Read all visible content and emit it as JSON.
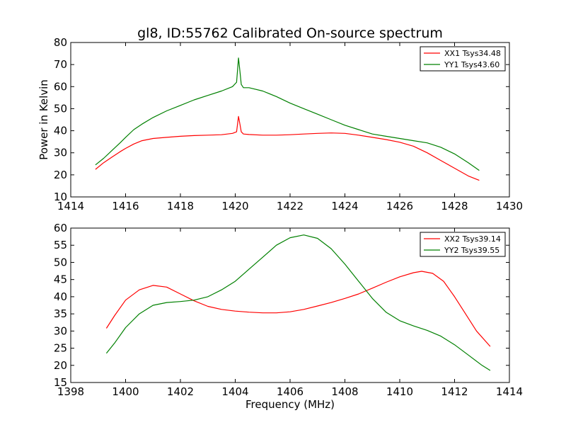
{
  "chart_data": [
    {
      "type": "line",
      "title": "gl8, ID:55762 Calibrated On-source spectrum",
      "xlabel": "",
      "ylabel": "Power in Kelvin",
      "xlim": [
        1414,
        1430
      ],
      "ylim": [
        10,
        80
      ],
      "xticks": [
        "1414",
        "1416",
        "1418",
        "1420",
        "1422",
        "1424",
        "1426",
        "1428",
        "1430"
      ],
      "yticks": [
        "10",
        "20",
        "30",
        "40",
        "50",
        "60",
        "70",
        "80"
      ],
      "legend_position": "top-right",
      "series": [
        {
          "name": "XX1 Tsys34.48",
          "color": "#ff0000",
          "x": [
            1414.9,
            1415.2,
            1415.5,
            1415.8,
            1416.0,
            1416.3,
            1416.6,
            1417.0,
            1417.5,
            1418.0,
            1418.5,
            1419.0,
            1419.5,
            1419.9,
            1420.05,
            1420.12,
            1420.17,
            1420.22,
            1420.3,
            1420.5,
            1421.0,
            1421.5,
            1422.0,
            1422.5,
            1423.0,
            1423.5,
            1424.0,
            1424.5,
            1425.0,
            1425.5,
            1426.0,
            1426.5,
            1427.0,
            1427.5,
            1428.0,
            1428.5,
            1428.9
          ],
          "y": [
            22.5,
            25.5,
            28.0,
            30.5,
            32.0,
            34.0,
            35.5,
            36.5,
            37.0,
            37.5,
            37.8,
            38.0,
            38.2,
            38.8,
            39.5,
            46.5,
            43.0,
            39.5,
            38.5,
            38.3,
            38.0,
            38.0,
            38.2,
            38.5,
            38.8,
            39.0,
            38.8,
            38.0,
            37.0,
            36.0,
            34.8,
            33.0,
            30.0,
            26.5,
            23.0,
            19.5,
            17.5
          ]
        },
        {
          "name": "YY1 Tsys43.60",
          "color": "#008000",
          "x": [
            1414.9,
            1415.2,
            1415.5,
            1415.8,
            1416.0,
            1416.3,
            1416.6,
            1417.0,
            1417.5,
            1418.0,
            1418.5,
            1419.0,
            1419.5,
            1419.9,
            1420.05,
            1420.12,
            1420.17,
            1420.22,
            1420.3,
            1420.5,
            1421.0,
            1421.5,
            1422.0,
            1422.5,
            1423.0,
            1423.5,
            1424.0,
            1424.5,
            1425.0,
            1425.5,
            1426.0,
            1426.5,
            1427.0,
            1427.5,
            1428.0,
            1428.5,
            1428.9
          ],
          "y": [
            24.5,
            27.5,
            31.0,
            34.5,
            37.0,
            40.5,
            43.0,
            46.0,
            49.0,
            51.5,
            54.0,
            56.0,
            58.0,
            60.0,
            62.0,
            73.0,
            67.0,
            61.0,
            59.5,
            59.5,
            58.0,
            55.5,
            52.5,
            50.0,
            47.5,
            45.0,
            42.5,
            40.5,
            38.5,
            37.5,
            36.5,
            35.5,
            34.5,
            32.5,
            29.5,
            25.5,
            22.0
          ]
        }
      ]
    },
    {
      "type": "line",
      "title": "",
      "xlabel": "Frequency (MHz)",
      "ylabel": "",
      "xlim": [
        1398,
        1414
      ],
      "ylim": [
        15,
        60
      ],
      "xticks": [
        "1398",
        "1400",
        "1402",
        "1404",
        "1406",
        "1408",
        "1410",
        "1412",
        "1414"
      ],
      "yticks": [
        "15",
        "20",
        "25",
        "30",
        "35",
        "40",
        "45",
        "50",
        "55",
        "60"
      ],
      "legend_position": "top-right",
      "series": [
        {
          "name": "XX2 Tsys39.14",
          "color": "#ff0000",
          "x": [
            1399.3,
            1399.6,
            1400.0,
            1400.5,
            1401.0,
            1401.5,
            1402.0,
            1402.5,
            1403.0,
            1403.5,
            1404.0,
            1404.5,
            1405.0,
            1405.5,
            1406.0,
            1406.5,
            1407.0,
            1407.5,
            1408.0,
            1408.5,
            1409.0,
            1409.5,
            1410.0,
            1410.5,
            1410.8,
            1411.2,
            1411.6,
            1412.0,
            1412.4,
            1412.8,
            1413.3
          ],
          "y": [
            30.8,
            34.5,
            39.0,
            42.0,
            43.3,
            42.8,
            40.8,
            38.8,
            37.2,
            36.3,
            35.8,
            35.5,
            35.3,
            35.3,
            35.6,
            36.3,
            37.3,
            38.3,
            39.5,
            40.8,
            42.5,
            44.2,
            45.8,
            47.0,
            47.4,
            46.8,
            44.5,
            40.0,
            35.0,
            30.0,
            25.5
          ]
        },
        {
          "name": "YY2 Tsys39.55",
          "color": "#008000",
          "x": [
            1399.3,
            1399.6,
            1400.0,
            1400.5,
            1401.0,
            1401.5,
            1402.0,
            1402.5,
            1403.0,
            1403.5,
            1404.0,
            1404.5,
            1405.0,
            1405.5,
            1406.0,
            1406.5,
            1407.0,
            1407.5,
            1408.0,
            1408.5,
            1409.0,
            1409.5,
            1410.0,
            1410.5,
            1411.0,
            1411.5,
            1412.0,
            1412.5,
            1413.0,
            1413.3
          ],
          "y": [
            23.5,
            26.5,
            31.0,
            35.0,
            37.5,
            38.3,
            38.6,
            39.0,
            40.0,
            42.0,
            44.5,
            48.0,
            51.5,
            55.0,
            57.2,
            58.0,
            57.0,
            54.0,
            49.5,
            44.5,
            39.5,
            35.5,
            33.0,
            31.5,
            30.2,
            28.5,
            26.0,
            23.0,
            20.0,
            18.5
          ]
        }
      ]
    }
  ]
}
